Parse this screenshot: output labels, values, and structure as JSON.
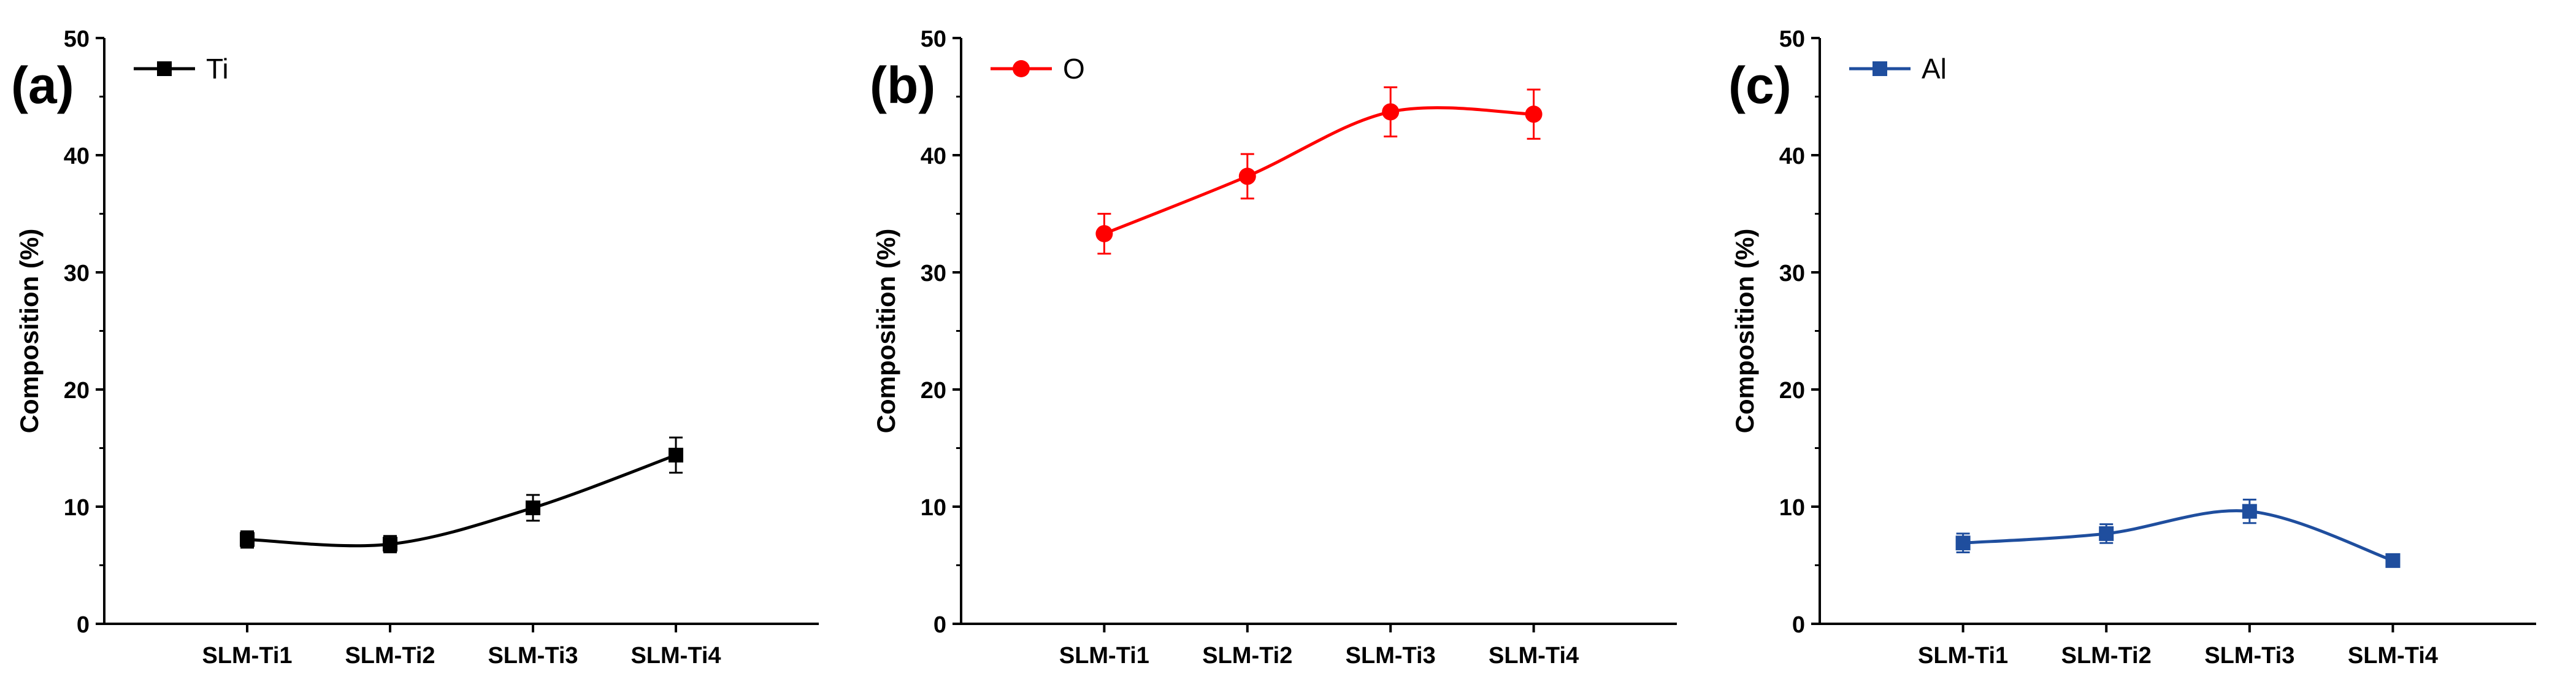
{
  "chart_data": [
    {
      "type": "line",
      "panel_label": "(a)",
      "title": "",
      "xlabel": "",
      "ylabel": "Composition (%)",
      "ylim": [
        0,
        50
      ],
      "yticks": [
        "0",
        "10",
        "20",
        "30",
        "40",
        "50"
      ],
      "categories": [
        "SLM-Ti1",
        "SLM-Ti2",
        "SLM-Ti3",
        "SLM-Ti4"
      ],
      "legend_position": "top-left",
      "grid": false,
      "series": [
        {
          "name": "Ti",
          "color": "#000000",
          "marker": "square",
          "values": [
            7.2,
            6.8,
            9.9,
            14.4
          ],
          "errors": [
            0.7,
            0.7,
            1.1,
            1.5
          ]
        }
      ]
    },
    {
      "type": "line",
      "panel_label": "(b)",
      "title": "",
      "xlabel": "",
      "ylabel": "Composition (%)",
      "ylim": [
        0,
        50
      ],
      "yticks": [
        "0",
        "10",
        "20",
        "30",
        "40",
        "50"
      ],
      "categories": [
        "SLM-Ti1",
        "SLM-Ti2",
        "SLM-Ti3",
        "SLM-Ti4"
      ],
      "legend_position": "top-left",
      "grid": false,
      "series": [
        {
          "name": "O",
          "color": "#ff0000",
          "marker": "circle",
          "values": [
            33.3,
            38.2,
            43.7,
            43.5
          ],
          "errors": [
            1.7,
            1.9,
            2.1,
            2.1
          ]
        }
      ]
    },
    {
      "type": "line",
      "panel_label": "(c)",
      "title": "",
      "xlabel": "",
      "ylabel": "Composition (%)",
      "ylim": [
        0,
        50
      ],
      "yticks": [
        "0",
        "10",
        "20",
        "30",
        "40",
        "50"
      ],
      "categories": [
        "SLM-Ti1",
        "SLM-Ti2",
        "SLM-Ti3",
        "SLM-Ti4"
      ],
      "legend_position": "top-left",
      "grid": false,
      "series": [
        {
          "name": "Al",
          "color": "#1f4e9e",
          "marker": "square",
          "values": [
            6.9,
            7.7,
            9.6,
            5.4
          ],
          "errors": [
            0.8,
            0.8,
            1.0,
            0.4
          ]
        }
      ]
    }
  ]
}
